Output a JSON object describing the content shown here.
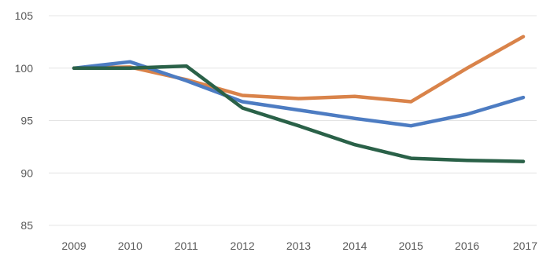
{
  "chart_data": {
    "type": "line",
    "title": "",
    "xlabel": "",
    "ylabel": "",
    "categories": [
      "2009",
      "2010",
      "2011",
      "2012",
      "2013",
      "2014",
      "2015",
      "2016",
      "2017"
    ],
    "ylim": [
      85,
      105
    ],
    "yticks": [
      85,
      90,
      95,
      100,
      105
    ],
    "grid": true,
    "legend": "none",
    "series": [
      {
        "color": "#d9834a",
        "values": [
          100,
          100.1,
          98.9,
          97.4,
          97.1,
          97.3,
          96.8,
          100,
          103
        ]
      },
      {
        "color": "#4d7cc2",
        "values": [
          100,
          100.6,
          98.8,
          96.8,
          96.0,
          95.2,
          94.5,
          95.6,
          97.2
        ]
      },
      {
        "color": "#2a6148",
        "values": [
          100,
          100.0,
          100.2,
          96.2,
          94.5,
          92.7,
          91.4,
          91.2,
          91.1
        ]
      }
    ]
  }
}
